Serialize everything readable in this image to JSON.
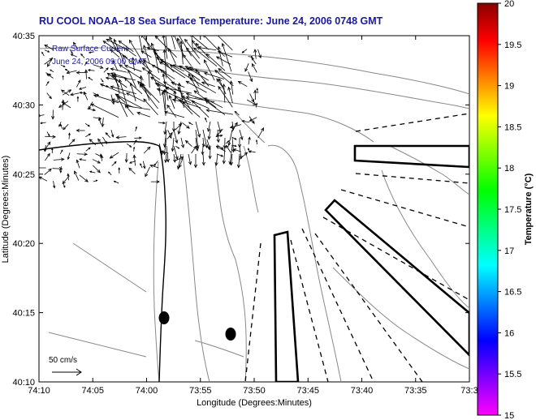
{
  "title": "RU COOL   NOAA–18  Sea Surface Temperature:  June 24, 2006 0748 GMT",
  "overlay": {
    "line1": "Raw Surface Current",
    "line2": "June 24, 2006 09:00 GMT"
  },
  "axes": {
    "xlabel": "Longitude (Degrees:Minutes)",
    "ylabel": "Latitude (Degrees:Minutes)",
    "xticks": [
      "74:10",
      "74:05",
      "74:00",
      "73:55",
      "73:50",
      "73:45",
      "73:40",
      "73:35",
      "73:3"
    ],
    "yticks": [
      "40:35",
      "40:30",
      "40:25",
      "40:20",
      "40:15",
      "40:10"
    ]
  },
  "scale": {
    "label": "50 cm/s"
  },
  "colorbar": {
    "label": "Temperature (°C)",
    "ticks": [
      "20",
      "19.5",
      "19",
      "18.5",
      "18",
      "17.5",
      "17",
      "16.5",
      "16",
      "15.5",
      "15"
    ],
    "min": 15,
    "max": 20,
    "colors": [
      "#ff00ff",
      "#8000ff",
      "#0000ff",
      "#0080ff",
      "#00ffff",
      "#00ff80",
      "#00ff00",
      "#80ff00",
      "#ffff00",
      "#ff8000",
      "#ff0000",
      "#8b0000"
    ]
  },
  "colors": {
    "title": "#1a1a9c",
    "frame": "#000000",
    "contour": "#808080"
  }
}
